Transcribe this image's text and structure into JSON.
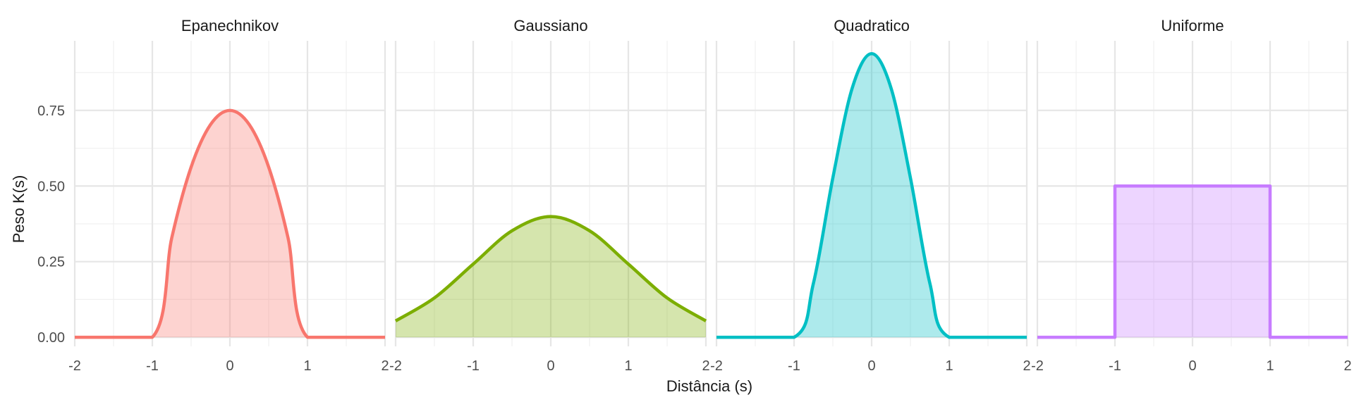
{
  "chart_data": {
    "type": "area",
    "xlabel": "Distância (s)",
    "ylabel": "Peso K(s)",
    "xlim": [
      -2,
      2
    ],
    "ylim": [
      -0.03,
      0.98
    ],
    "x_ticks": [
      -2,
      -1,
      0,
      1,
      2
    ],
    "x_tick_labels": [
      "-2",
      "-1",
      "0",
      "1",
      "2"
    ],
    "y_ticks": [
      0,
      0.25,
      0.5,
      0.75
    ],
    "y_tick_labels": [
      "0.00",
      "0.25",
      "0.50",
      "0.75"
    ],
    "grid": true,
    "panels": [
      {
        "title": "Epanechnikov",
        "color": "#F8766D",
        "x": [
          -2,
          -1,
          -0.75,
          -0.5,
          -0.25,
          0,
          0.25,
          0.5,
          0.75,
          1,
          2
        ],
        "y": [
          0,
          0,
          0.328,
          0.5625,
          0.703,
          0.75,
          0.703,
          0.5625,
          0.328,
          0,
          0
        ]
      },
      {
        "title": "Gaussiano",
        "color": "#7CAE00",
        "x": [
          -2,
          -1.5,
          -1,
          -0.5,
          0,
          0.5,
          1,
          1.5,
          2
        ],
        "y": [
          0.054,
          0.13,
          0.242,
          0.352,
          0.399,
          0.352,
          0.242,
          0.13,
          0.054
        ]
      },
      {
        "title": "Quadratico",
        "color": "#00BFC4",
        "x": [
          -2,
          -1,
          -0.75,
          -0.5,
          -0.25,
          0,
          0.25,
          0.5,
          0.75,
          1,
          2
        ],
        "y": [
          0,
          0,
          0.179,
          0.527,
          0.824,
          0.9375,
          0.824,
          0.527,
          0.179,
          0,
          0
        ]
      },
      {
        "title": "Uniforme",
        "color": "#C77CFF",
        "x": [
          -2,
          -1,
          -1,
          1,
          1,
          2
        ],
        "y": [
          0,
          0,
          0.5,
          0.5,
          0,
          0
        ]
      }
    ]
  }
}
